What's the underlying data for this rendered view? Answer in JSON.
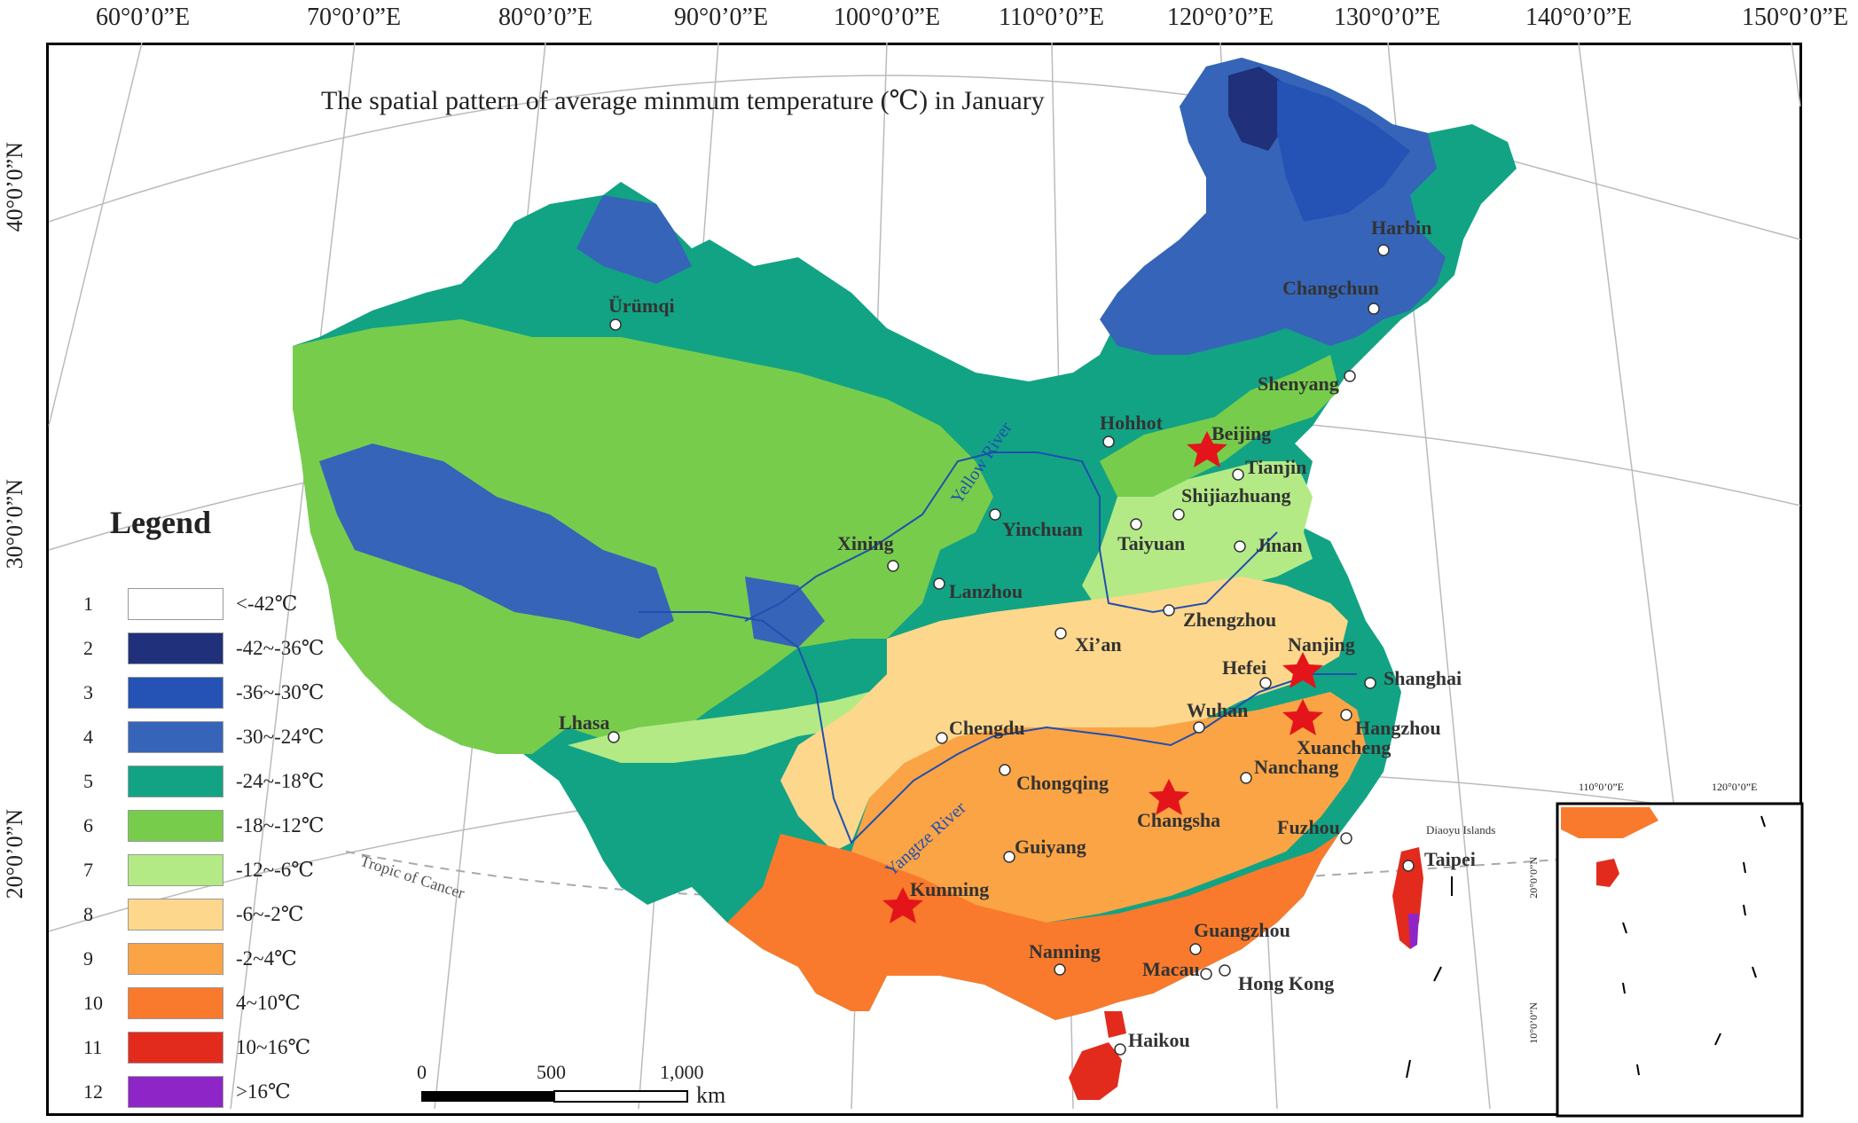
{
  "title": "The spatial pattern of average minmum temperature (℃) in January",
  "longitude_labels": [
    "60°0’0”E",
    "70°0’0”E",
    "80°0’0”E",
    "90°0’0”E",
    "100°0’0”E",
    "110°0’0”E",
    "120°0’0”E",
    "130°0’0”E",
    "140°0’0”E",
    "150°0’0”E"
  ],
  "latitude_labels": [
    "40°0’0”N",
    "30°0’0”N",
    "20°0’0”N"
  ],
  "legend": {
    "title": "Legend",
    "items": [
      {
        "num": "1",
        "label": "<-42℃",
        "color": "#ffffff"
      },
      {
        "num": "2",
        "label": "-42~-36℃",
        "color": "#20307a"
      },
      {
        "num": "3",
        "label": "-36~-30℃",
        "color": "#2452b5"
      },
      {
        "num": "4",
        "label": "-30~-24℃",
        "color": "#3664b8"
      },
      {
        "num": "5",
        "label": "-24~-18℃",
        "color": "#12a384"
      },
      {
        "num": "6",
        "label": "-18~-12℃",
        "color": "#77cd4b"
      },
      {
        "num": "7",
        "label": "-12~-6℃",
        "color": "#b3ea86"
      },
      {
        "num": "8",
        "label": "-6~-2℃",
        "color": "#fdd78c"
      },
      {
        "num": "9",
        "label": "-2~4℃",
        "color": "#fba445"
      },
      {
        "num": "10",
        "label": "4~10℃",
        "color": "#f97a2c"
      },
      {
        "num": "11",
        "label": "10~16℃",
        "color": "#e22b1c"
      },
      {
        "num": "12",
        "label": ">16℃",
        "color": "#8e25c7"
      }
    ]
  },
  "cities": {
    "harbin": "Harbin",
    "changchun": "Changchun",
    "shenyang": "Shenyang",
    "urumqi": "Ürümqi",
    "hohhot": "Hohhot",
    "beijing": "Beijing",
    "tianjin": "Tianjin",
    "shijiazhuang": "Shijiazhuang",
    "yinchuan": "Yinchuan",
    "taiyuan": "Taiyuan",
    "jinan": "Jinan",
    "xining": "Xining",
    "lanzhou": "Lanzhou",
    "zhengzhou": "Zhengzhou",
    "xian": "Xi’an",
    "nanjing": "Nanjing",
    "hefei": "Hefei",
    "shanghai": "Shanghai",
    "lhasa": "Lhasa",
    "chengdu": "Chengdu",
    "wuhan": "Wuhan",
    "hangzhou": "Hangzhou",
    "xuancheng": "Xuancheng",
    "nanchang": "Nanchang",
    "chongqing": "Chongqing",
    "changsha": "Changsha",
    "fuzhou": "Fuzhou",
    "taipei": "Taipei",
    "guiyang": "Guiyang",
    "kunming": "Kunming",
    "guangzhou": "Guangzhou",
    "nanning": "Nanning",
    "macau": "Macau",
    "hongkong": "Hong Kong",
    "haikou": "Haikou"
  },
  "rivers": {
    "yellow": "Yellow River",
    "yangtze": "Yangtze River"
  },
  "tropic": "Tropic of Cancer",
  "diaoyu": "Diaoyu Islands",
  "scale": {
    "zero": "0",
    "mid": "500",
    "max": "1,000",
    "unit": "km"
  },
  "inset": {
    "lon1": "110°0’0”E",
    "lon2": "120°0’0”E",
    "lat1": "20°0’0”N",
    "lat2": "10°0’0”N"
  }
}
